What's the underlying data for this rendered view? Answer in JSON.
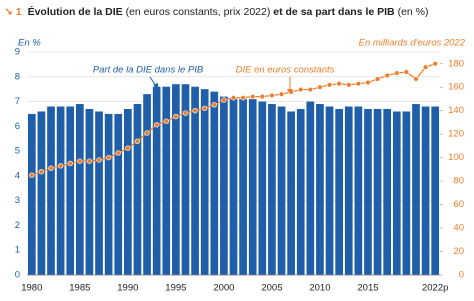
{
  "chart_data": {
    "type": "bar-line",
    "title_number": "↘ 1",
    "title": [
      {
        "text": "Évolution de la DIE",
        "bold": true
      },
      {
        "text": " (en euros constants, prix 2022) ",
        "bold": false
      },
      {
        "text": "et de sa part dans le PIB",
        "bold": true
      },
      {
        "text": " (en %)",
        "bold": false
      }
    ],
    "y_label": "En %",
    "y2_label": "En milliards d'euros 2022",
    "annotations": [
      "Part de la DIE dans le PIB",
      "DIE en euros constants"
    ],
    "categories": [
      "1980",
      null,
      null,
      null,
      null,
      "1985",
      null,
      null,
      null,
      null,
      "1990",
      null,
      null,
      null,
      null,
      "1995",
      null,
      null,
      null,
      null,
      "2000",
      null,
      null,
      null,
      null,
      "2005",
      null,
      null,
      null,
      null,
      "2010",
      null,
      null,
      null,
      null,
      "2015",
      null,
      null,
      null,
      null,
      null,
      null,
      "2022p"
    ],
    "series": [
      {
        "name": "Part de la DIE dans le PIB",
        "color": "#1f5ea8",
        "kind": "bar",
        "values": [
          6.5,
          6.6,
          6.8,
          6.8,
          6.8,
          6.9,
          6.7,
          6.6,
          6.5,
          6.5,
          6.7,
          6.9,
          7.3,
          7.6,
          7.6,
          7.7,
          7.7,
          7.6,
          7.5,
          7.4,
          7.2,
          7.1,
          7.1,
          7.1,
          7.0,
          6.9,
          6.8,
          6.6,
          6.7,
          7.0,
          6.9,
          6.8,
          6.7,
          6.8,
          6.8,
          6.7,
          6.7,
          6.7,
          6.6,
          6.6,
          6.9,
          6.8,
          6.8
        ]
      },
      {
        "name": "DIE en euros constants",
        "color": "#f07d2a",
        "kind": "line",
        "axis": "y2",
        "values": [
          85,
          88,
          91,
          93,
          95,
          97,
          97,
          98,
          100,
          104,
          108,
          114,
          121,
          128,
          131,
          135,
          138,
          140,
          142,
          145,
          149,
          151,
          151,
          152,
          152,
          153,
          154,
          156,
          158,
          158,
          160,
          162,
          163,
          162,
          163,
          164,
          167,
          170,
          172,
          173,
          167,
          177,
          180
        ]
      }
    ],
    "ylim": [
      0,
      9
    ],
    "yticks": [
      0,
      1,
      2,
      3,
      4,
      5,
      6,
      7,
      8,
      9
    ],
    "y2lim": [
      0,
      190
    ],
    "y2ticks": [
      0,
      20,
      40,
      60,
      80,
      100,
      120,
      140,
      160,
      180
    ],
    "grid": true
  }
}
